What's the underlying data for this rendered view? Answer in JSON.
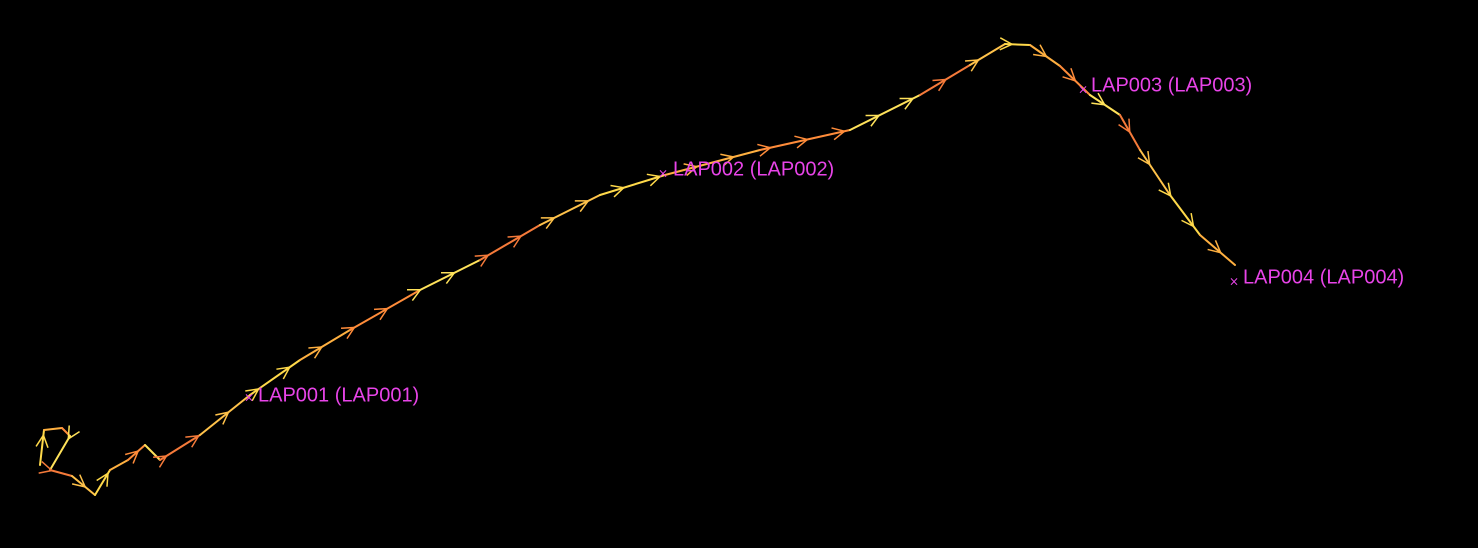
{
  "laps": [
    {
      "label": "LAP001 (LAP001)"
    },
    {
      "label": "LAP002 (LAP002)"
    },
    {
      "label": "LAP003 (LAP003)"
    },
    {
      "label": "LAP004 (LAP004)"
    }
  ]
}
